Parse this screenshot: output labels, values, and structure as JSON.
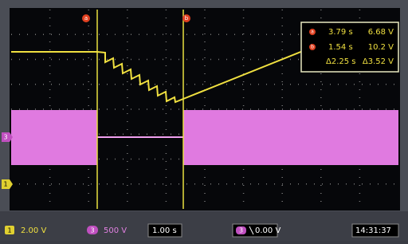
{
  "readout": {
    "cursor_a": {
      "label": "a",
      "time": "3.79 s",
      "voltage": "6.68 V"
    },
    "cursor_b": {
      "label": "b",
      "time": "1.54 s",
      "voltage": "10.2 V"
    },
    "delta": {
      "time": "Δ2.25 s",
      "voltage": "Δ3.52 V"
    }
  },
  "markers": {
    "cursor_a": "a",
    "cursor_b": "b",
    "ch3": "3",
    "ch1": "1"
  },
  "status_bar": {
    "ch1": {
      "badge": "1",
      "scale": "2.00 V"
    },
    "ch3": {
      "badge": "3",
      "scale": "500 V"
    },
    "timebase": "1.00 s",
    "trigger": {
      "badge": "3",
      "level": "0.00 V"
    },
    "clock": "14:31:37"
  }
}
